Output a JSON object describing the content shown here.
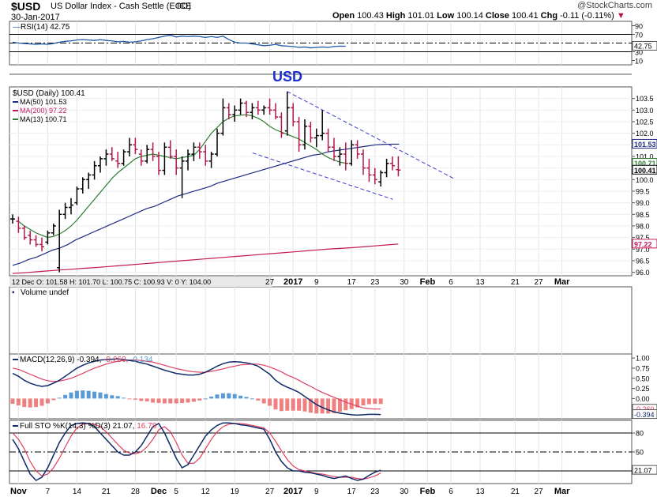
{
  "header": {
    "symbol": "$USD",
    "name": "US Dollar Index - Cash Settle (EOD)",
    "exchange": "ICE",
    "date": "30-Jan-2017",
    "brand": "@StockCharts.com",
    "ohlc": {
      "open_label": "Open",
      "open": "100.43",
      "high_label": "High",
      "high": "101.01",
      "low_label": "Low",
      "low": "100.14",
      "close_label": "Close",
      "close": "100.41",
      "chg_label": "Chg",
      "chg": "-0.11 (-0.11%)"
    }
  },
  "colors": {
    "price_up": "#000000",
    "price_down": "#b0184c",
    "ma50": "#1f2a80",
    "ma200": "#c2185b",
    "ma13": "#2e7d32",
    "rsi": "#1e5aa8",
    "macd_line": "#0f2a66",
    "macd_signal": "#e04060",
    "hist_pos": "#5b9bd5",
    "hist_neg": "#f08080",
    "sto_k": "#0f2a66",
    "sto_d": "#e04060",
    "channel": "#3a3ad0",
    "title": "#1a2fd0"
  },
  "chart_data": [
    {
      "type": "line",
      "panel": "rsi",
      "label": "RSI(14) 42.75",
      "ylim": [
        0,
        100
      ],
      "ticks": [
        "90",
        "70",
        "50",
        "30",
        "10"
      ],
      "tick_values": [
        90,
        70,
        50,
        30,
        10
      ],
      "last_value_label": "42.75",
      "last_value": 42.75,
      "values": [
        52,
        50,
        49,
        48,
        47,
        48,
        47,
        49,
        52,
        54,
        55,
        57,
        58,
        57,
        56,
        58,
        56,
        55,
        53,
        54,
        52,
        53,
        55,
        58,
        60,
        63,
        66,
        68,
        64,
        66,
        65,
        66,
        65,
        63,
        65,
        63,
        66,
        58,
        52,
        50,
        50,
        48,
        46,
        44,
        45,
        47,
        44,
        43,
        42,
        40,
        41,
        39,
        40,
        41,
        40,
        42,
        43,
        42.75
      ]
    },
    {
      "type": "candlestick",
      "panel": "price",
      "title": "USD",
      "label": "$USD (Daily) 100.41",
      "legend": [
        {
          "name": "MA(50) 101.53",
          "color": "#1f2a80"
        },
        {
          "name": "MA(200) 97.22",
          "color": "#c2185b"
        },
        {
          "name": "MA(13) 100.71",
          "color": "#2e7d32"
        }
      ],
      "ylim": [
        95.85,
        104.0
      ],
      "y_ticks": [
        "103.5",
        "103.0",
        "102.5",
        "102.0",
        "101.5",
        "101.0",
        "100.5",
        "100.0",
        "99.5",
        "99.0",
        "98.5",
        "98.0",
        "97.5",
        "97.0",
        "96.5",
        "96.0"
      ],
      "y_tick_values": [
        103.5,
        103.0,
        102.5,
        102.0,
        101.5,
        101.0,
        100.5,
        100.0,
        99.5,
        99.0,
        98.5,
        98.0,
        97.5,
        97.0,
        96.5,
        96.0
      ],
      "value_labels": [
        {
          "text": "101.53",
          "value": 101.53,
          "color": "#1f2a80"
        },
        {
          "text": "100.71",
          "value": 100.71,
          "color": "#2e7d32"
        },
        {
          "text": "100.41",
          "value": 100.41,
          "color": "#000000"
        },
        {
          "text": "97.22",
          "value": 97.22,
          "color": "#c2185b"
        }
      ],
      "info_bar": "12 Dec O: 101.58   H: 101.70   L: 100.75   C: 100.93   V: 0   Y: 104.00",
      "ohlc": [
        [
          98.3,
          98.5,
          98.1,
          98.3
        ],
        [
          98.2,
          98.4,
          97.7,
          97.9
        ],
        [
          97.9,
          98.0,
          97.4,
          97.5
        ],
        [
          97.6,
          97.8,
          97.2,
          97.4
        ],
        [
          97.4,
          97.6,
          97.1,
          97.2
        ],
        [
          97.2,
          97.5,
          96.9,
          97.1
        ],
        [
          97.3,
          97.8,
          97.2,
          97.7
        ],
        [
          97.7,
          98.1,
          97.6,
          98.0
        ],
        [
          96.2,
          98.7,
          96.0,
          98.5
        ],
        [
          98.5,
          99.0,
          98.3,
          98.8
        ],
        [
          98.8,
          99.2,
          98.5,
          98.9
        ],
        [
          99.0,
          99.7,
          98.9,
          99.6
        ],
        [
          99.6,
          100.1,
          99.4,
          100.0
        ],
        [
          100.0,
          100.3,
          99.6,
          100.2
        ],
        [
          100.2,
          100.8,
          100.0,
          100.6
        ],
        [
          100.6,
          101.0,
          100.3,
          100.9
        ],
        [
          100.9,
          101.3,
          100.6,
          101.1
        ],
        [
          101.1,
          101.4,
          100.8,
          100.9
        ],
        [
          100.8,
          101.2,
          100.5,
          100.7
        ],
        [
          100.7,
          101.3,
          100.6,
          101.2
        ],
        [
          101.2,
          101.8,
          101.0,
          101.5
        ],
        [
          101.5,
          101.8,
          101.1,
          101.3
        ],
        [
          101.1,
          101.3,
          100.6,
          100.8
        ],
        [
          100.8,
          101.5,
          100.7,
          101.3
        ],
        [
          101.3,
          101.6,
          100.8,
          101.0
        ],
        [
          101.0,
          101.2,
          100.2,
          100.4
        ],
        [
          100.4,
          101.6,
          100.2,
          101.4
        ],
        [
          101.4,
          101.7,
          100.9,
          101.0
        ],
        [
          101.0,
          101.3,
          100.2,
          100.5
        ],
        [
          100.5,
          101.0,
          99.2,
          100.8
        ],
        [
          100.8,
          101.3,
          100.4,
          101.1
        ],
        [
          101.1,
          101.6,
          100.8,
          101.4
        ],
        [
          101.4,
          101.6,
          100.9,
          101.2
        ],
        [
          101.2,
          101.5,
          100.6,
          100.8
        ],
        [
          100.8,
          101.2,
          100.5,
          101.1
        ],
        [
          101.1,
          102.2,
          101.0,
          102.0
        ],
        [
          102.0,
          103.5,
          101.9,
          103.1
        ],
        [
          103.1,
          103.3,
          102.6,
          102.8
        ],
        [
          102.8,
          103.2,
          102.5,
          103.0
        ],
        [
          103.0,
          103.5,
          102.8,
          103.3
        ],
        [
          103.3,
          103.4,
          102.7,
          102.9
        ],
        [
          102.9,
          103.3,
          102.6,
          103.1
        ],
        [
          103.1,
          103.4,
          102.8,
          103.0
        ],
        [
          103.0,
          103.2,
          102.8,
          103.1
        ],
        [
          103.1,
          103.5,
          102.8,
          103.0
        ],
        [
          103.0,
          103.3,
          102.6,
          102.7
        ],
        [
          102.7,
          102.9,
          101.8,
          102.0
        ],
        [
          102.1,
          103.8,
          101.9,
          103.1
        ],
        [
          103.1,
          103.3,
          102.3,
          102.5
        ],
        [
          102.5,
          102.7,
          101.2,
          101.5
        ],
        [
          101.5,
          102.6,
          101.3,
          102.3
        ],
        [
          102.3,
          102.5,
          101.6,
          101.8
        ],
        [
          101.8,
          102.2,
          101.4,
          101.9
        ],
        [
          101.9,
          103.0,
          101.7,
          102.0
        ],
        [
          102.0,
          102.2,
          101.2,
          101.4
        ],
        [
          101.4,
          101.8,
          100.8,
          101.0
        ],
        [
          101.0,
          101.4,
          100.6,
          101.1
        ],
        [
          101.1,
          101.6,
          100.4,
          100.7
        ],
        [
          100.7,
          101.7,
          100.6,
          101.5
        ],
        [
          101.5,
          101.7,
          100.9,
          101.1
        ],
        [
          101.1,
          101.3,
          100.2,
          100.5
        ],
        [
          100.5,
          100.9,
          99.9,
          100.2
        ],
        [
          100.2,
          100.5,
          99.8,
          100.0
        ],
        [
          99.9,
          100.4,
          99.7,
          100.3
        ],
        [
          100.3,
          100.9,
          100.1,
          100.7
        ],
        [
          100.7,
          101.0,
          100.4,
          100.6
        ],
        [
          100.43,
          101.01,
          100.14,
          100.41
        ]
      ],
      "ma50": [
        96.3,
        96.4,
        96.55,
        96.65,
        96.8,
        96.95,
        97.05,
        97.2,
        97.4,
        97.55,
        97.7,
        97.85,
        98.0,
        98.15,
        98.3,
        98.45,
        98.6,
        98.75,
        98.85,
        99.0,
        99.15,
        99.3,
        99.4,
        99.5,
        99.6,
        99.7,
        99.85,
        99.95,
        100.05,
        100.15,
        100.25,
        100.35,
        100.45,
        100.55,
        100.65,
        100.75,
        100.85,
        100.95,
        101.05,
        101.1,
        101.2,
        101.25,
        101.3,
        101.35,
        101.4,
        101.45,
        101.5,
        101.52,
        101.53,
        101.53
      ],
      "ma200": [
        95.95,
        95.98,
        96.02,
        96.06,
        96.1,
        96.13,
        96.17,
        96.2,
        96.24,
        96.28,
        96.32,
        96.36,
        96.4,
        96.44,
        96.48,
        96.52,
        96.56,
        96.6,
        96.64,
        96.68,
        96.72,
        96.76,
        96.8,
        96.84,
        96.88,
        96.92,
        96.96,
        97.0,
        97.03,
        97.06,
        97.1,
        97.14,
        97.18,
        97.22
      ],
      "ma13": [
        98.2,
        98.0,
        97.85,
        97.7,
        97.6,
        97.5,
        97.55,
        97.65,
        97.8,
        98.0,
        98.25,
        98.55,
        98.85,
        99.15,
        99.45,
        99.75,
        100.05,
        100.3,
        100.5,
        100.7,
        100.9,
        101.0,
        101.05,
        101.1,
        101.05,
        101.0,
        100.95,
        100.9,
        100.95,
        101.0,
        101.05,
        101.3,
        101.65,
        102.0,
        102.25,
        102.5,
        102.65,
        102.75,
        102.78,
        102.8,
        102.75,
        102.65,
        102.5,
        102.3,
        102.15,
        102.05,
        101.95,
        101.85,
        101.75,
        101.6,
        101.45,
        101.3,
        101.1,
        100.95,
        100.85,
        100.75,
        100.71
      ],
      "channel_upper": [
        [
          47,
          103.8
        ],
        [
          70,
          100.4
        ]
      ],
      "channel_lower": [
        [
          37,
          101.15
        ],
        [
          61,
          99.15
        ]
      ]
    },
    {
      "type": "bar",
      "panel": "volume",
      "label": "Volume undef",
      "values": []
    },
    {
      "type": "line",
      "panel": "macd",
      "label": "MACD(12,26,9)",
      "macd_value": "-0.394,",
      "signal_value": "-0.260,",
      "hist_value": "-0.134",
      "ylim": [
        -0.5,
        1.1
      ],
      "ticks": [
        "1.00",
        "0.75",
        "0.50",
        "0.25",
        "0.00"
      ],
      "tick_values": [
        1.0,
        0.75,
        0.5,
        0.25,
        0.0
      ],
      "value_labels": [
        {
          "text": "-0.260",
          "value": -0.26,
          "color": "#e04060"
        },
        {
          "text": "-0.394",
          "value": -0.394,
          "color": "#0f2a66"
        }
      ],
      "macd": [
        0.62,
        0.55,
        0.45,
        0.38,
        0.33,
        0.3,
        0.32,
        0.38,
        0.45,
        0.55,
        0.65,
        0.75,
        0.82,
        0.88,
        0.92,
        0.95,
        0.96,
        0.97,
        0.98,
        0.96,
        0.94,
        0.92,
        0.88,
        0.85,
        0.8,
        0.75,
        0.7,
        0.66,
        0.62,
        0.6,
        0.58,
        0.58,
        0.6,
        0.65,
        0.72,
        0.8,
        0.86,
        0.9,
        0.91,
        0.9,
        0.88,
        0.85,
        0.8,
        0.7,
        0.6,
        0.45,
        0.35,
        0.28,
        0.22,
        0.15,
        0.05,
        -0.05,
        -0.15,
        -0.22,
        -0.28,
        -0.33,
        -0.36,
        -0.38,
        -0.4,
        -0.41,
        -0.4,
        -0.39,
        -0.39,
        -0.394
      ],
      "signal": [
        0.75,
        0.72,
        0.66,
        0.6,
        0.54,
        0.48,
        0.44,
        0.42,
        0.43,
        0.46,
        0.5,
        0.56,
        0.62,
        0.69,
        0.75,
        0.8,
        0.85,
        0.89,
        0.92,
        0.94,
        0.95,
        0.95,
        0.94,
        0.92,
        0.9,
        0.86,
        0.82,
        0.78,
        0.74,
        0.71,
        0.68,
        0.66,
        0.65,
        0.65,
        0.67,
        0.7,
        0.73,
        0.77,
        0.8,
        0.83,
        0.84,
        0.85,
        0.85,
        0.82,
        0.78,
        0.72,
        0.66,
        0.58,
        0.52,
        0.45,
        0.37,
        0.3,
        0.22,
        0.15,
        0.09,
        0.03,
        -0.03,
        -0.09,
        -0.14,
        -0.19,
        -0.23,
        -0.25,
        -0.26,
        -0.26
      ],
      "hist": [
        -0.13,
        -0.17,
        -0.21,
        -0.22,
        -0.21,
        -0.18,
        -0.12,
        -0.04,
        0.02,
        0.09,
        0.15,
        0.19,
        0.2,
        0.19,
        0.17,
        0.15,
        0.11,
        0.08,
        0.06,
        0.02,
        -0.01,
        -0.03,
        -0.06,
        -0.07,
        -0.1,
        -0.11,
        -0.12,
        -0.12,
        -0.12,
        -0.11,
        -0.1,
        -0.08,
        -0.05,
        0.0,
        0.05,
        0.1,
        0.13,
        0.13,
        0.11,
        0.07,
        0.04,
        0.0,
        -0.05,
        -0.12,
        -0.18,
        -0.27,
        -0.31,
        -0.3,
        -0.3,
        -0.3,
        -0.32,
        -0.35,
        -0.37,
        -0.37,
        -0.37,
        -0.36,
        -0.33,
        -0.29,
        -0.26,
        -0.22,
        -0.17,
        -0.14,
        -0.13,
        -0.134
      ]
    },
    {
      "type": "line",
      "panel": "sto",
      "label": "Full STO %K(14,3) %D(3)",
      "k_value": "21.07,",
      "d_value": "16.78",
      "ylim": [
        0,
        100
      ],
      "ticks": [
        "80",
        "50",
        "20"
      ],
      "tick_values": [
        80,
        50,
        20
      ],
      "last_value_label": "21.07",
      "last_value": 21.07,
      "k": [
        70,
        55,
        35,
        15,
        5,
        10,
        25,
        45,
        65,
        80,
        92,
        95,
        96,
        95,
        90,
        80,
        70,
        60,
        50,
        45,
        45,
        50,
        60,
        75,
        90,
        95,
        80,
        60,
        40,
        25,
        30,
        45,
        60,
        75,
        85,
        92,
        96,
        96,
        95,
        93,
        92,
        90,
        88,
        86,
        70,
        50,
        35,
        25,
        20,
        20,
        18,
        17,
        15,
        13,
        10,
        8,
        10,
        12,
        8,
        5,
        7,
        13,
        18,
        21.07
      ],
      "d": [
        80,
        70,
        55,
        35,
        20,
        12,
        15,
        25,
        40,
        58,
        75,
        88,
        94,
        95,
        94,
        90,
        82,
        72,
        62,
        53,
        48,
        47,
        50,
        58,
        70,
        85,
        90,
        82,
        65,
        45,
        32,
        32,
        40,
        55,
        70,
        82,
        90,
        94,
        95,
        95,
        94,
        92,
        90,
        88,
        80,
        67,
        52,
        38,
        28,
        22,
        20,
        18,
        16,
        15,
        13,
        11,
        10,
        10,
        10,
        8,
        7,
        9,
        12,
        16.78
      ]
    }
  ],
  "x_axis_price": {
    "labels": [
      "27",
      "2017",
      "9",
      "17",
      "23",
      "30",
      "Feb",
      "6",
      "13",
      "21",
      "27",
      "Mar"
    ],
    "bold": [
      "2017",
      "Feb",
      "Mar"
    ],
    "indices": [
      44,
      48,
      52,
      58,
      62,
      67,
      71,
      75,
      80,
      86,
      90,
      94
    ]
  },
  "x_axis_bottom": {
    "labels": [
      "Nov",
      "7",
      "14",
      "21",
      "28",
      "Dec",
      "5",
      "12",
      "19",
      "27",
      "2017",
      "9",
      "17",
      "23",
      "30",
      "Feb",
      "6",
      "13",
      "21",
      "27",
      "Mar"
    ],
    "bold": [
      "Nov",
      "Dec",
      "2017",
      "Feb",
      "Mar"
    ],
    "indices": [
      1,
      6,
      11,
      16,
      21,
      25,
      28,
      33,
      38,
      44,
      48,
      52,
      58,
      62,
      67,
      71,
      75,
      80,
      86,
      90,
      94
    ]
  }
}
